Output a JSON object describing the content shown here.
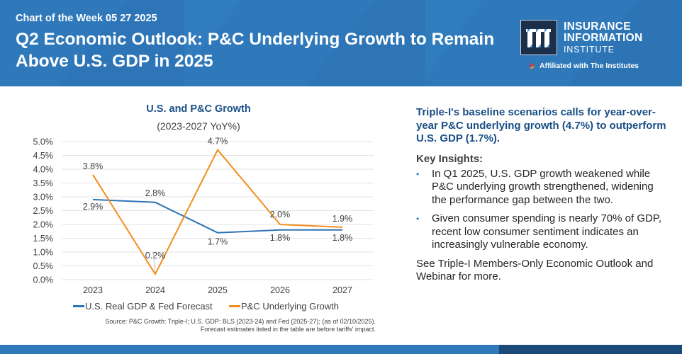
{
  "header": {
    "kicker": "Chart of the Week 05 27 2025",
    "title": "Q2 Economic Outlook: P&C Underlying Growth to Remain Above U.S. GDP in 2025",
    "logo": {
      "line1": "INSURANCE",
      "line2": "INFORMATION",
      "line3": "INSTITUTE",
      "affiliation": "Affiliated with The Institutes"
    }
  },
  "colors": {
    "header_bg": "#2f79bb",
    "title_blue": "#1a4f86",
    "gdp_line": "#2e75b6",
    "pc_line": "#f28e1c",
    "footer_dark": "#1b4a78"
  },
  "chart_data": {
    "type": "line",
    "title": "U.S. and P&C Growth",
    "subtitle": "(2023-2027 YoY%)",
    "xlabel": "",
    "ylabel": "",
    "categories": [
      "2023",
      "2024",
      "2025",
      "2026",
      "2027"
    ],
    "ylim": [
      0,
      5.0
    ],
    "yticks": [
      "0.0%",
      "0.5%",
      "1.0%",
      "1.5%",
      "2.0%",
      "2.5%",
      "3.0%",
      "3.5%",
      "4.0%",
      "4.5%",
      "5.0%"
    ],
    "grid": true,
    "legend_position": "bottom",
    "series": [
      {
        "name": "U.S. Real GDP & Fed Forecast",
        "color": "#2e75b6",
        "values": [
          2.9,
          2.8,
          1.7,
          1.8,
          1.8
        ],
        "labels": [
          "2.9%",
          "2.8%",
          "1.7%",
          "1.8%",
          "1.8%"
        ]
      },
      {
        "name": "P&C Underlying Growth",
        "color": "#f28e1c",
        "values": [
          3.8,
          0.2,
          4.7,
          2.0,
          1.9
        ],
        "labels": [
          "3.8%",
          "0.2%",
          "4.7%",
          "2.0%",
          "1.9%"
        ]
      }
    ],
    "source_line1": "Source: P&C Growth: Triple-I; U.S. GDP: BLS (2023-24) and Fed (2025-27); (as of 02/10/2025).",
    "source_line2": "Forecast estimates listed in the table are before tariffs' impact."
  },
  "insights": {
    "lead": "Triple-I's baseline scenarios calls for year-over-year P&C underlying growth (4.7%) to outperform U.S. GDP (1.7%).",
    "heading": "Key Insights:",
    "bullets": [
      "In Q1 2025, U.S. GDP growth weakened while P&C underlying growth strengthened, widening the performance gap between the two.",
      "Given consumer spending is nearly 70% of GDP, recent low consumer sentiment indicates an increasingly vulnerable economy."
    ],
    "bullet_glyph": "•",
    "closing": "See Triple-I Members-Only Economic Outlook and Webinar for more."
  }
}
